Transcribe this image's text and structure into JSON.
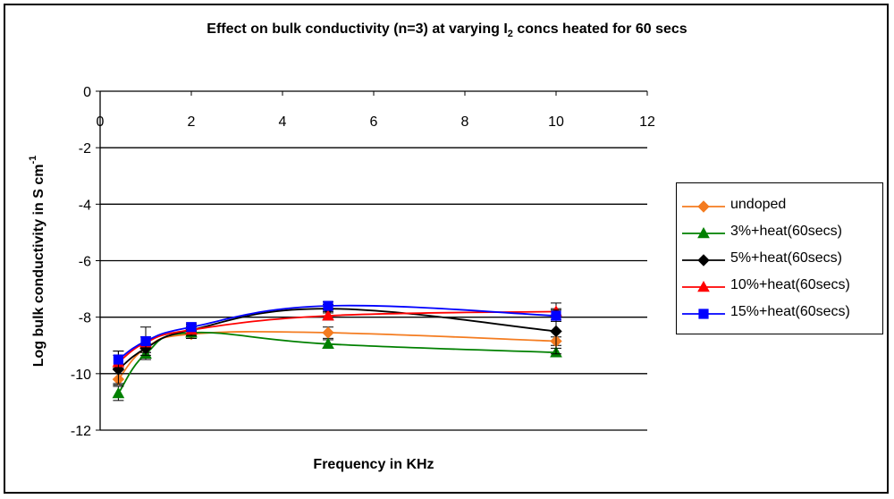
{
  "chart_data": {
    "type": "line",
    "title": "Effect on bulk conductivity (n=3) at varying I",
    "title_sub": "2",
    "title_rest": " concs heated for 60 secs",
    "xlabel": "Frequency in KHz",
    "ylabel": "Log bulk conductivity in S cm",
    "ylabel_sup": "-1",
    "xlim": [
      0,
      12
    ],
    "ylim": [
      -12,
      0
    ],
    "x_ticks": [
      0,
      2,
      4,
      6,
      8,
      10,
      12
    ],
    "y_ticks": [
      0,
      -2,
      -4,
      -6,
      -8,
      -10,
      -12
    ],
    "grid": "horizontal",
    "legend_position": "right",
    "x": [
      0.4,
      1,
      2,
      5,
      10
    ],
    "series": [
      {
        "name": "undoped",
        "color": "#f47c20",
        "marker": "diamond",
        "values": [
          -10.2,
          -9.1,
          -8.6,
          -8.55,
          -8.85
        ],
        "errors": [
          0.2,
          0.15,
          0.15,
          0.2,
          0.15
        ]
      },
      {
        "name": "3%+heat(60secs)",
        "color": "#008000",
        "marker": "triangle",
        "values": [
          -10.7,
          -9.3,
          -8.55,
          -8.95,
          -9.25
        ],
        "errors": [
          0.25,
          0.2,
          0.2,
          0.15,
          0.15
        ]
      },
      {
        "name": "5%+heat(60secs)",
        "color": "#000000",
        "marker": "diamond",
        "values": [
          -9.85,
          -9.1,
          -8.45,
          -7.7,
          -8.5
        ],
        "errors": [
          0.5,
          0.15,
          0.2,
          0.15,
          0.8
        ]
      },
      {
        "name": "10%+heat(60secs)",
        "color": "#ff0000",
        "marker": "triangle",
        "values": [
          -9.6,
          -8.9,
          -8.45,
          -7.95,
          -7.8
        ],
        "errors": [
          0.4,
          0.2,
          0.15,
          0.15,
          0.3
        ]
      },
      {
        "name": "15%+heat(60secs)",
        "color": "#0000ff",
        "marker": "square",
        "values": [
          -9.5,
          -8.85,
          -8.35,
          -7.6,
          -7.95
        ],
        "errors": [
          0.3,
          0.5,
          0.15,
          0.15,
          0.2
        ]
      }
    ]
  }
}
